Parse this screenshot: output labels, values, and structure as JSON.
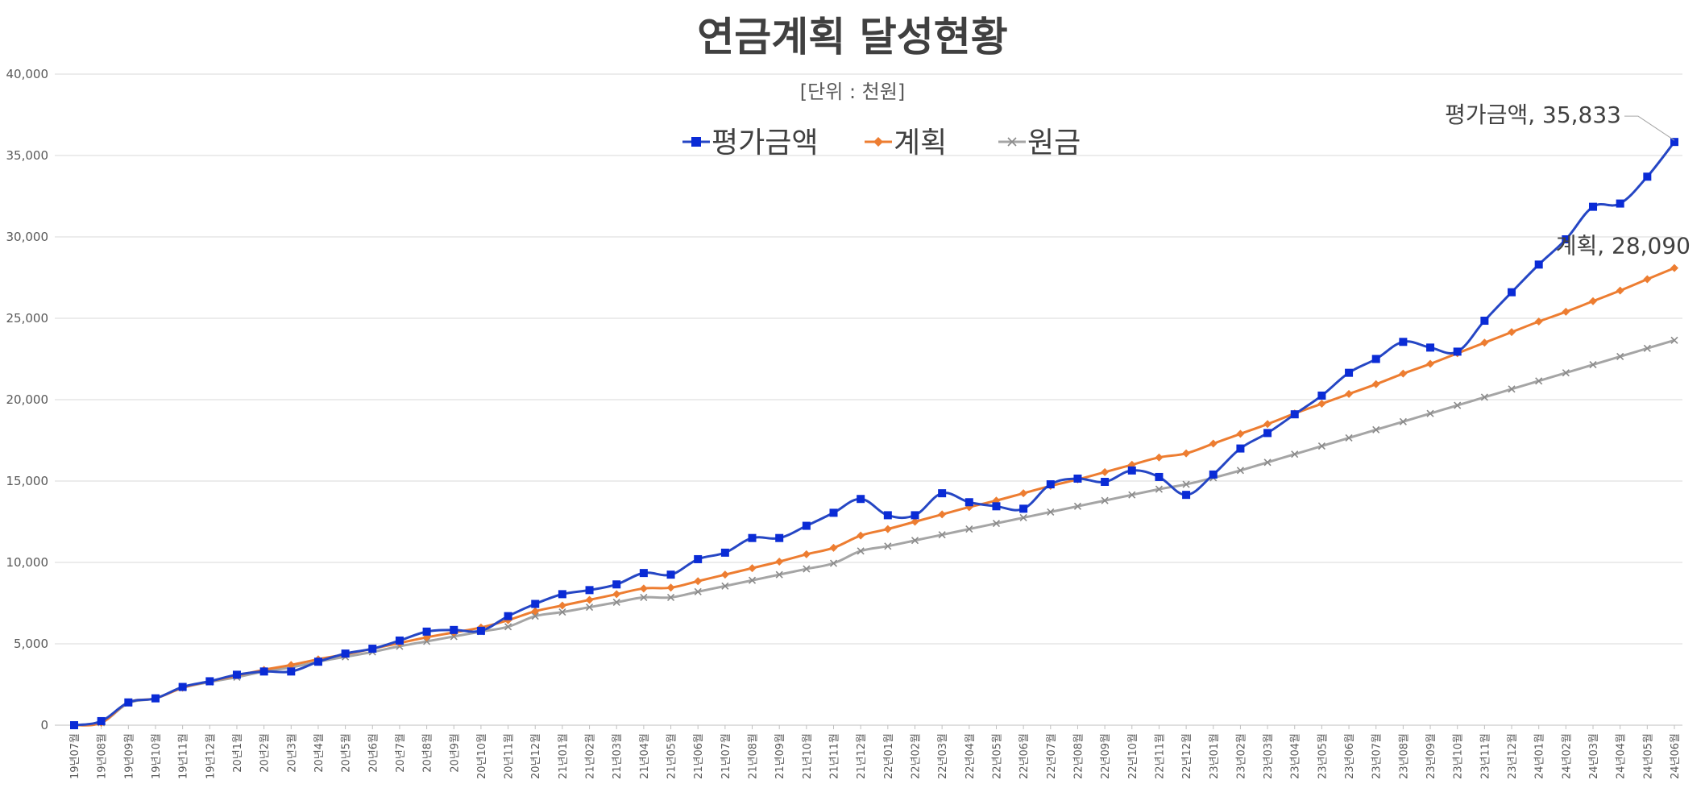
{
  "chart_data": {
    "type": "line",
    "title": "연금계획 달성현황",
    "subtitle": "[단위 : 천원]",
    "ylim": [
      0,
      40000
    ],
    "yticks": [
      0,
      5000,
      10000,
      15000,
      20000,
      25000,
      30000,
      35000,
      40000
    ],
    "ytick_labels": [
      "0",
      "5,000",
      "10,000",
      "15,000",
      "20,000",
      "25,000",
      "30,000",
      "35,000",
      "40,000"
    ],
    "grid": true,
    "legend_position": "top-center",
    "categories": [
      "19년07월",
      "19년08월",
      "19년09월",
      "19년10월",
      "19년11월",
      "19년12월",
      "20년1월",
      "20년2월",
      "20년3월",
      "20년4월",
      "20년5월",
      "20년6월",
      "20년7월",
      "20년8월",
      "20년9월",
      "20년10월",
      "20년11월",
      "20년12월",
      "21년01월",
      "21년02월",
      "21년03월",
      "21년04월",
      "21년05월",
      "21년06월",
      "21년07월",
      "21년08월",
      "21년09월",
      "21년10월",
      "21년11월",
      "21년12월",
      "22년01월",
      "22년02월",
      "22년03월",
      "22년04월",
      "22년05월",
      "22년06월",
      "22년07월",
      "22년08월",
      "22년09월",
      "22년10월",
      "22년11월",
      "22년12월",
      "23년01월",
      "23년02월",
      "23년03월",
      "23년04월",
      "23년05월",
      "23년06월",
      "23년07월",
      "23년08월",
      "23년09월",
      "23년10월",
      "23년11월",
      "23년12월",
      "24년01월",
      "24년02월",
      "24년03월",
      "24년04월",
      "24년05월",
      "24년06월"
    ],
    "series": [
      {
        "name": "평가금액",
        "color": "#2546c4",
        "marker": "square",
        "marker_color": "#0a2bd6",
        "values": [
          0,
          250,
          1400,
          1650,
          2350,
          2700,
          3100,
          3300,
          3300,
          3900,
          4400,
          4700,
          5200,
          5750,
          5850,
          5800,
          6700,
          7450,
          8050,
          8300,
          8650,
          9350,
          9250,
          10200,
          10600,
          11500,
          11500,
          12250,
          13050,
          13900,
          12900,
          12900,
          14250,
          13700,
          13450,
          13300,
          14800,
          15150,
          14950,
          15650,
          15250,
          14150,
          15400,
          17000,
          17950,
          19100,
          20250,
          21650,
          22500,
          23550,
          23200,
          22950,
          24850,
          26600,
          28300,
          29850,
          31850,
          32050,
          33700,
          35833
        ]
      },
      {
        "name": "계획",
        "color": "#ed7d31",
        "marker": "diamond",
        "marker_color": "#ed7d31",
        "values": [
          0,
          150,
          1400,
          1650,
          2300,
          2700,
          3050,
          3400,
          3700,
          4050,
          4350,
          4700,
          5050,
          5400,
          5700,
          6000,
          6450,
          7000,
          7350,
          7700,
          8050,
          8400,
          8450,
          8850,
          9250,
          9650,
          10050,
          10500,
          10900,
          11650,
          12050,
          12500,
          12950,
          13400,
          13800,
          14250,
          14700,
          15100,
          15550,
          16000,
          16450,
          16700,
          17300,
          17900,
          18500,
          19150,
          19750,
          20350,
          20950,
          21600,
          22200,
          22850,
          23500,
          24150,
          24800,
          25400,
          26050,
          26700,
          27400,
          28090
        ]
      },
      {
        "name": "원금",
        "color": "#a5a5a5",
        "marker": "x",
        "marker_color": "#8a8a8a",
        "values": [
          0,
          150,
          1350,
          1650,
          2300,
          2650,
          2950,
          3300,
          3550,
          3900,
          4200,
          4500,
          4850,
          5150,
          5450,
          5750,
          6050,
          6700,
          6950,
          7250,
          7550,
          7850,
          7850,
          8200,
          8550,
          8900,
          9250,
          9600,
          9950,
          10700,
          11000,
          11350,
          11700,
          12050,
          12400,
          12750,
          13100,
          13450,
          13800,
          14150,
          14500,
          14800,
          15200,
          15650,
          16150,
          16650,
          17150,
          17650,
          18150,
          18650,
          19150,
          19650,
          20150,
          20650,
          21150,
          21650,
          22150,
          22650,
          23150,
          23650
        ]
      }
    ],
    "annotations": [
      {
        "series": "평가금액",
        "text": "평가금액, 35,833"
      },
      {
        "series": "계획",
        "text": "계획, 28,090"
      }
    ]
  }
}
